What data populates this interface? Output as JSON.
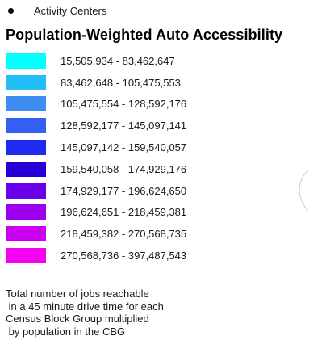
{
  "point_legend": {
    "label": "Activity Centers",
    "symbol": "black-dot-icon"
  },
  "title": "Population-Weighted Auto Accessibility",
  "classes": [
    {
      "label": "15,505,934 - 83,462,647",
      "color": "#00FFFF"
    },
    {
      "label": "83,462,648 - 105,475,553",
      "color": "#22BFF7"
    },
    {
      "label": "105,475,554 - 128,592,176",
      "color": "#3D8EF4"
    },
    {
      "label": "128,592,177 - 145,097,141",
      "color": "#3360F2"
    },
    {
      "label": "145,097,142 - 159,540,057",
      "color": "#1E2AF0"
    },
    {
      "label": "159,540,058 - 174,929,176",
      "color": "#2800D6"
    },
    {
      "label": "174,929,177 - 196,624,650",
      "color": "#6A00EA"
    },
    {
      "label": "196,624,651 - 218,459,381",
      "color": "#9D00F0"
    },
    {
      "label": "218,459,382 - 270,568,735",
      "color": "#CC00F0"
    },
    {
      "label": "270,568,736 - 397,487,543",
      "color": "#F500F0"
    }
  ],
  "note_lines": [
    "Total number of jobs reachable",
    " in a 45 minute drive time for each",
    "Census Block Group multiplied",
    " by population in the CBG"
  ]
}
